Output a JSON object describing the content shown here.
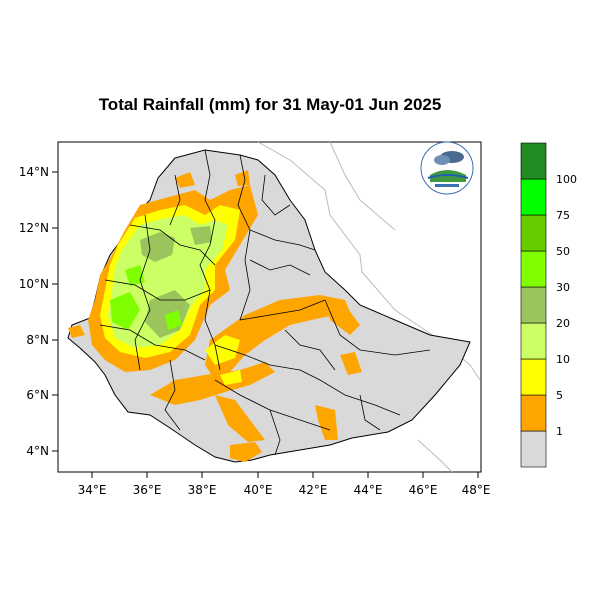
{
  "title": "Total Rainfall (mm) for 31 May-01 Jun 2025",
  "map": {
    "x_ticks": [
      "34°E",
      "36°E",
      "38°E",
      "40°E",
      "42°E",
      "44°E",
      "46°E",
      "48°E"
    ],
    "y_ticks": [
      "14°N",
      "12°N",
      "10°N",
      "8°N",
      "6°N",
      "4°N"
    ],
    "x_range": [
      33.0,
      48.2
    ],
    "y_range": [
      3.2,
      15.0
    ]
  },
  "legend": {
    "unit": "mm",
    "bins": [
      {
        "label": "1",
        "color": "#d9d9d9"
      },
      {
        "label": "5",
        "color": "#ffa500"
      },
      {
        "label": "10",
        "color": "#ffff00"
      },
      {
        "label": "20",
        "color": "#ccff66"
      },
      {
        "label": "30",
        "color": "#9cc45c"
      },
      {
        "label": "50",
        "color": "#80ff00"
      },
      {
        "label": "75",
        "color": "#66cc00"
      },
      {
        "label": "100",
        "color": "#00ff00"
      },
      {
        "label": "",
        "color": "#228b22"
      }
    ]
  }
}
